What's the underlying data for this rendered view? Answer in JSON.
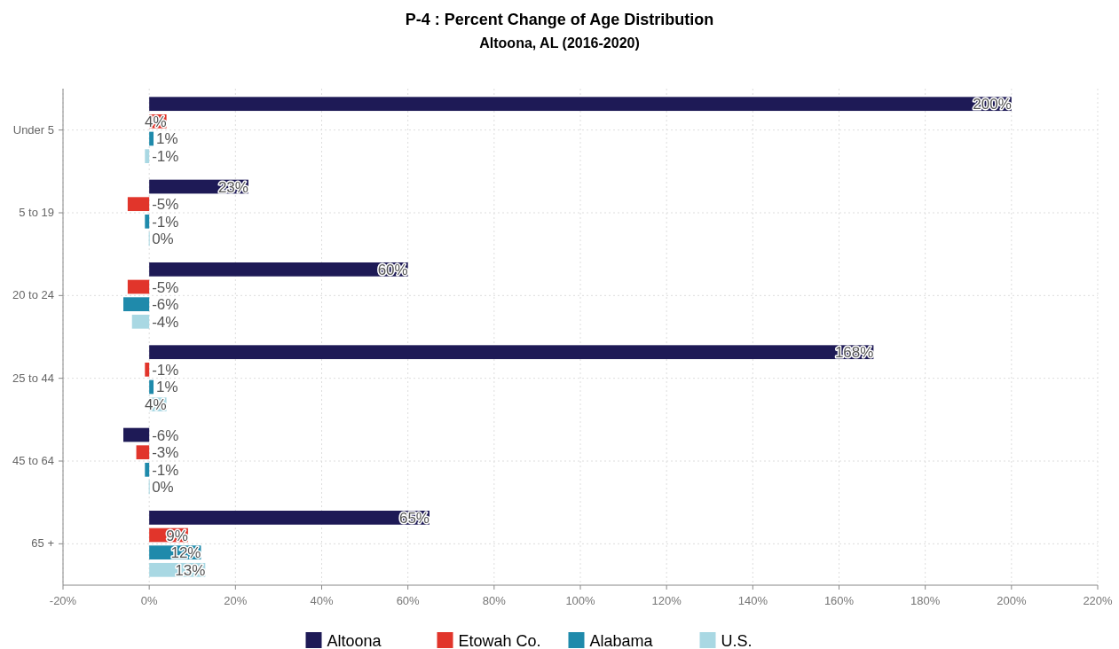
{
  "chart_data": {
    "type": "bar",
    "orientation": "horizontal",
    "title": "P-4 : Percent Change of Age Distribution",
    "subtitle": "Altoona, AL (2016-2020)",
    "categories": [
      "Under 5",
      "5 to 19",
      "20 to 24",
      "25 to 44",
      "45 to 64",
      "65 +"
    ],
    "series": [
      {
        "name": "Altoona",
        "color": "#1e1a56",
        "values": [
          200,
          23,
          60,
          168,
          -6,
          65
        ],
        "value_labels": [
          "200%",
          "23%",
          "60%",
          "168%",
          "-6%",
          "65%"
        ]
      },
      {
        "name": "Etowah Co.",
        "color": "#e1352b",
        "values": [
          4,
          -5,
          -5,
          -1,
          -3,
          9
        ],
        "value_labels": [
          "4%",
          "-5%",
          "-5%",
          "-1%",
          "-3%",
          "9%"
        ]
      },
      {
        "name": "Alabama",
        "color": "#1f8aab",
        "values": [
          1,
          -1,
          -6,
          1,
          -1,
          12
        ],
        "value_labels": [
          "1%",
          "-1%",
          "-6%",
          "1%",
          "-1%",
          "12%"
        ]
      },
      {
        "name": "U.S.",
        "color": "#a9d8e3",
        "values": [
          -1,
          0,
          -4,
          4,
          0,
          13
        ],
        "value_labels": [
          "-1%",
          "0%",
          "-4%",
          "4%",
          "0%",
          "13%"
        ]
      }
    ],
    "xlim": [
      -20,
      220
    ],
    "xticks": [
      {
        "value": -20,
        "label": "-20%"
      },
      {
        "value": 0,
        "label": "0%"
      },
      {
        "value": 20,
        "label": "20%"
      },
      {
        "value": 40,
        "label": "40%"
      },
      {
        "value": 60,
        "label": "60%"
      },
      {
        "value": 80,
        "label": "80%"
      },
      {
        "value": 100,
        "label": "100%"
      },
      {
        "value": 120,
        "label": "120%"
      },
      {
        "value": 140,
        "label": "140%"
      },
      {
        "value": 160,
        "label": "160%"
      },
      {
        "value": 180,
        "label": "180%"
      },
      {
        "value": 200,
        "label": "200%"
      },
      {
        "value": 220,
        "label": "220%"
      }
    ],
    "grid": true,
    "legend": "bottom"
  }
}
